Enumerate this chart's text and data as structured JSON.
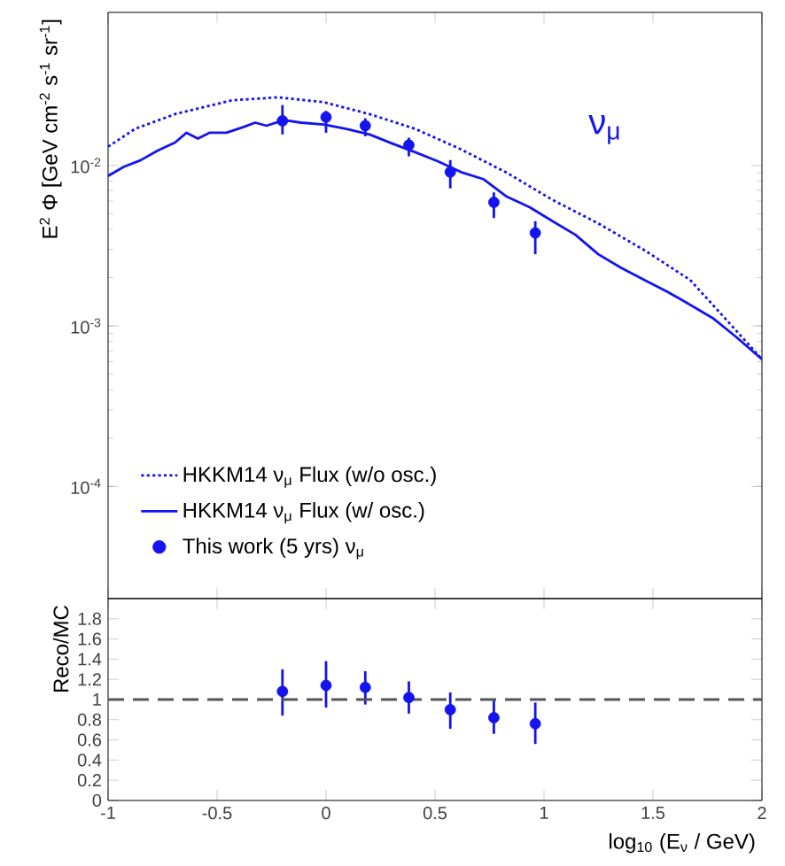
{
  "chart_data": [
    {
      "type": "line",
      "ylabel": "E$^{2}$ Φ [GeV cm$^{-2}$ s$^{-1}$ sr$^{-1}$]",
      "log": "y",
      "xlim": [
        -1,
        2
      ],
      "xticks": [
        -1,
        -0.5,
        0,
        0.5,
        1,
        1.5,
        2
      ],
      "ylim": [
        2e-05,
        0.09
      ],
      "yticks": [
        {
          "value": 0.0001,
          "label": "10$^{-4}$"
        },
        {
          "value": 0.001,
          "label": "10$^{-3}$"
        },
        {
          "value": 0.01,
          "label": "10$^{-2}$"
        }
      ],
      "tick_labels": "y",
      "legend": "bottom left",
      "annotations": [
        "ν$_{μ}$"
      ],
      "series": [
        {
          "name": "HKKM14 ν$_{μ}$ Flux (w/o osc.)",
          "color": "#1414f0",
          "line_style": "dotted",
          "x": [
            -1.0,
            -0.877,
            -0.693,
            -0.43,
            -0.22,
            -0.01,
            0.2,
            0.41,
            0.62,
            0.83,
            1.04,
            1.25,
            1.46,
            1.67,
            1.88,
            2.0
          ],
          "values": [
            0.0131,
            0.0169,
            0.0209,
            0.0255,
            0.0266,
            0.0248,
            0.0209,
            0.0169,
            0.0126,
            0.009,
            0.0061,
            0.00435,
            0.00297,
            0.00194,
            0.00094,
            0.00062
          ]
        },
        {
          "name": "HKKM14 ν$_{μ}$ Flux (w/ osc.)",
          "color": "#1414f0",
          "line_style": "solid",
          "x": [
            -1.0,
            -0.929,
            -0.85,
            -0.772,
            -0.693,
            -0.64,
            -0.588,
            -0.535,
            -0.457,
            -0.378,
            -0.325,
            -0.273,
            -0.194,
            -0.115,
            -0.01,
            0.094,
            0.2,
            0.304,
            0.409,
            0.514,
            0.619,
            0.724,
            0.829,
            0.934,
            1.039,
            1.144,
            1.249,
            1.354,
            1.459,
            1.564,
            1.669,
            1.774,
            1.879,
            2.0
          ],
          "values": [
            0.0086,
            0.0098,
            0.0108,
            0.0124,
            0.0139,
            0.016,
            0.0147,
            0.016,
            0.016,
            0.0174,
            0.0185,
            0.0177,
            0.0192,
            0.0185,
            0.018,
            0.0169,
            0.0156,
            0.0137,
            0.0121,
            0.0106,
            0.0091,
            0.0082,
            0.0064,
            0.0055,
            0.0045,
            0.0037,
            0.0028,
            0.0023,
            0.00194,
            0.00164,
            0.00136,
            0.00112,
            0.00086,
            0.00062
          ]
        },
        {
          "type": "scatter",
          "name": "This work (5 yrs) ν$_{μ}$",
          "color": "#1414f0",
          "marker": "circle",
          "x": [
            -0.2,
            0,
            0.18,
            0.38,
            0.57,
            0.77,
            0.96
          ],
          "values": [
            0.019,
            0.02,
            0.0177,
            0.0134,
            0.0091,
            0.0059,
            0.0038
          ],
          "errors": [
            [
              0.0156,
              0.0238
            ],
            [
              0.016,
              0.0219
            ],
            [
              0.0152,
              0.0197
            ],
            [
              0.0114,
              0.0149
            ],
            [
              0.0072,
              0.0108
            ],
            [
              0.0047,
              0.0068
            ],
            [
              0.0028,
              0.0045
            ]
          ]
        }
      ]
    },
    {
      "type": "scatter",
      "xlabel": "log$_{10}$ (E$_{ν}$ / GeV)",
      "ylabel": "Reco/MC",
      "xlim": [
        -1,
        2
      ],
      "xticks": [
        -1,
        -0.5,
        0,
        0.5,
        1,
        1.5,
        2
      ],
      "ylim": [
        0,
        2
      ],
      "yticks": [
        0,
        0.2,
        0.4,
        0.6,
        0.8,
        1,
        1.2,
        1.4,
        1.6,
        1.8
      ],
      "ref_lines": [
        {
          "axis": "y",
          "value": 1,
          "color": "#555555",
          "line_style": "dashed"
        }
      ],
      "series": [
        {
          "color": "#1414f0",
          "marker": "circle",
          "x": [
            -0.2,
            0,
            0.18,
            0.38,
            0.57,
            0.77,
            0.96
          ],
          "values": [
            1.08,
            1.14,
            1.12,
            1.02,
            0.9,
            0.82,
            0.76
          ],
          "errors": [
            [
              0.84,
              1.3
            ],
            [
              0.92,
              1.38
            ],
            [
              0.95,
              1.28
            ],
            [
              0.86,
              1.18
            ],
            [
              0.71,
              1.07
            ],
            [
              0.66,
              0.99
            ],
            [
              0.56,
              0.97
            ]
          ]
        }
      ]
    }
  ]
}
